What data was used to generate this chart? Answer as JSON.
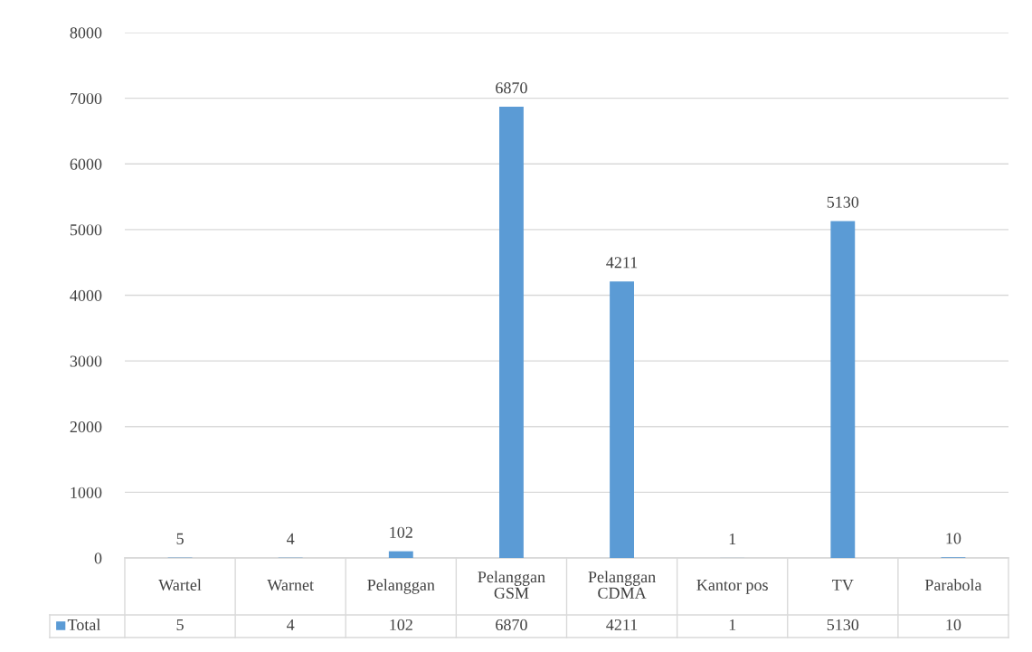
{
  "chart_data": {
    "type": "bar",
    "categories": [
      "Wartel",
      "Warnet",
      "Pelanggan",
      "Pelanggan GSM",
      "Pelanggan CDMA",
      "Kantor pos",
      "TV",
      "Parabola"
    ],
    "series": [
      {
        "name": "Total",
        "color": "#5b9bd5",
        "values": [
          5,
          4,
          102,
          6870,
          4211,
          1,
          5130,
          10
        ],
        "value_labels": [
          "5",
          "4",
          "102",
          "6870",
          "4211",
          "1",
          "5130",
          "10"
        ]
      }
    ],
    "ylim": [
      0,
      8000
    ],
    "yticks": [
      0,
      1000,
      2000,
      3000,
      4000,
      5000,
      6000,
      7000,
      8000
    ],
    "grid": "y",
    "data_labels": true,
    "legend": "bottom"
  }
}
